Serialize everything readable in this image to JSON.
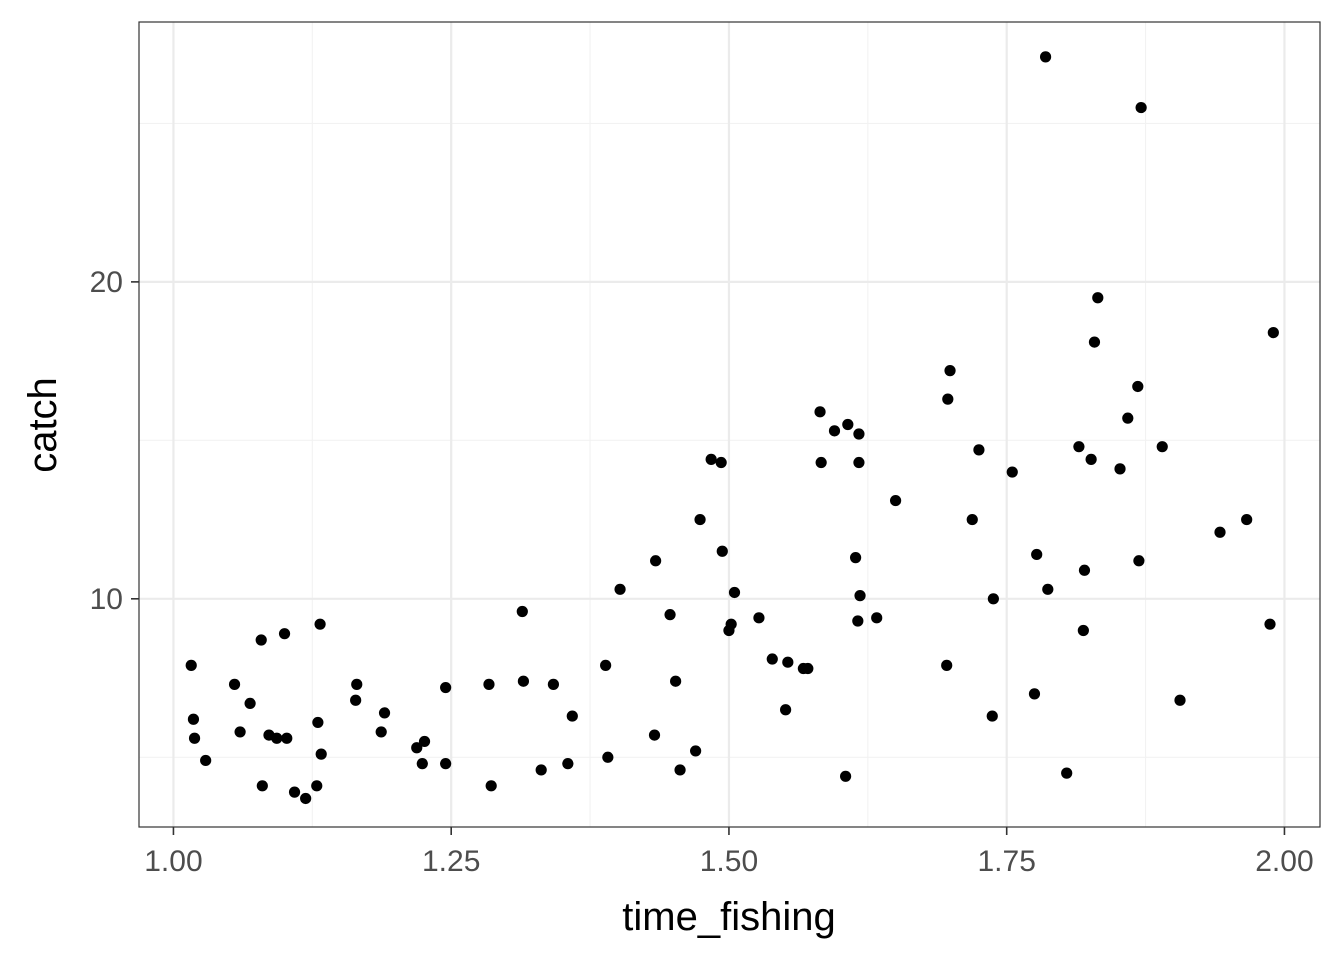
{
  "chart_data": {
    "type": "scatter",
    "title": "",
    "xlabel": "time_fishing",
    "ylabel": "catch",
    "xlim": [
      0.969,
      2.032
    ],
    "ylim": [
      2.8,
      28.2
    ],
    "x_ticks": [
      1.0,
      1.25,
      1.5,
      1.75,
      2.0
    ],
    "x_tick_labels": [
      "1.00",
      "1.25",
      "1.50",
      "1.75",
      "2.00"
    ],
    "x_minor_ticks": [
      1.125,
      1.375,
      1.625,
      1.875
    ],
    "y_ticks": [
      10,
      20
    ],
    "y_tick_labels": [
      "10",
      "20"
    ],
    "y_minor_ticks": [
      5,
      15,
      25
    ],
    "grid": true,
    "theme": "bw",
    "colors": {
      "point": "#000000",
      "grid_major": "#ebebeb",
      "grid_minor": "#f2f2f2",
      "panel_border": "#333333"
    },
    "points": [
      {
        "x": 1.016,
        "y": 7.9
      },
      {
        "x": 1.018,
        "y": 6.2
      },
      {
        "x": 1.019,
        "y": 5.6
      },
      {
        "x": 1.029,
        "y": 4.9
      },
      {
        "x": 1.055,
        "y": 7.3
      },
      {
        "x": 1.06,
        "y": 5.8
      },
      {
        "x": 1.069,
        "y": 6.7
      },
      {
        "x": 1.079,
        "y": 8.7
      },
      {
        "x": 1.08,
        "y": 4.1
      },
      {
        "x": 1.086,
        "y": 5.7
      },
      {
        "x": 1.093,
        "y": 5.6
      },
      {
        "x": 1.1,
        "y": 8.9
      },
      {
        "x": 1.102,
        "y": 5.6
      },
      {
        "x": 1.109,
        "y": 3.9
      },
      {
        "x": 1.119,
        "y": 3.7
      },
      {
        "x": 1.129,
        "y": 4.1
      },
      {
        "x": 1.13,
        "y": 6.1
      },
      {
        "x": 1.132,
        "y": 9.2
      },
      {
        "x": 1.133,
        "y": 5.1
      },
      {
        "x": 1.164,
        "y": 6.8
      },
      {
        "x": 1.165,
        "y": 7.3
      },
      {
        "x": 1.187,
        "y": 5.8
      },
      {
        "x": 1.19,
        "y": 6.4
      },
      {
        "x": 1.219,
        "y": 5.3
      },
      {
        "x": 1.224,
        "y": 4.8
      },
      {
        "x": 1.226,
        "y": 5.5
      },
      {
        "x": 1.245,
        "y": 7.2
      },
      {
        "x": 1.245,
        "y": 4.8
      },
      {
        "x": 1.284,
        "y": 7.3
      },
      {
        "x": 1.286,
        "y": 4.1
      },
      {
        "x": 1.314,
        "y": 9.6
      },
      {
        "x": 1.315,
        "y": 7.4
      },
      {
        "x": 1.331,
        "y": 4.6
      },
      {
        "x": 1.342,
        "y": 7.3
      },
      {
        "x": 1.355,
        "y": 4.8
      },
      {
        "x": 1.359,
        "y": 6.3
      },
      {
        "x": 1.389,
        "y": 7.9
      },
      {
        "x": 1.391,
        "y": 5.0
      },
      {
        "x": 1.402,
        "y": 10.3
      },
      {
        "x": 1.433,
        "y": 5.7
      },
      {
        "x": 1.434,
        "y": 11.2
      },
      {
        "x": 1.447,
        "y": 9.5
      },
      {
        "x": 1.452,
        "y": 7.4
      },
      {
        "x": 1.456,
        "y": 4.6
      },
      {
        "x": 1.47,
        "y": 5.2
      },
      {
        "x": 1.474,
        "y": 12.5
      },
      {
        "x": 1.484,
        "y": 14.4
      },
      {
        "x": 1.493,
        "y": 14.3
      },
      {
        "x": 1.494,
        "y": 11.5
      },
      {
        "x": 1.5,
        "y": 9.0
      },
      {
        "x": 1.502,
        "y": 9.2
      },
      {
        "x": 1.505,
        "y": 10.2
      },
      {
        "x": 1.527,
        "y": 9.4
      },
      {
        "x": 1.539,
        "y": 8.1
      },
      {
        "x": 1.551,
        "y": 6.5
      },
      {
        "x": 1.553,
        "y": 8.0
      },
      {
        "x": 1.567,
        "y": 7.8
      },
      {
        "x": 1.571,
        "y": 7.8
      },
      {
        "x": 1.582,
        "y": 15.9
      },
      {
        "x": 1.583,
        "y": 14.3
      },
      {
        "x": 1.595,
        "y": 15.3
      },
      {
        "x": 1.605,
        "y": 4.4
      },
      {
        "x": 1.607,
        "y": 15.5
      },
      {
        "x": 1.614,
        "y": 11.3
      },
      {
        "x": 1.616,
        "y": 9.3
      },
      {
        "x": 1.617,
        "y": 15.2
      },
      {
        "x": 1.617,
        "y": 14.3
      },
      {
        "x": 1.618,
        "y": 10.1
      },
      {
        "x": 1.633,
        "y": 9.4
      },
      {
        "x": 1.65,
        "y": 13.1
      },
      {
        "x": 1.696,
        "y": 7.9
      },
      {
        "x": 1.697,
        "y": 16.3
      },
      {
        "x": 1.699,
        "y": 17.2
      },
      {
        "x": 1.719,
        "y": 12.5
      },
      {
        "x": 1.725,
        "y": 14.7
      },
      {
        "x": 1.737,
        "y": 6.3
      },
      {
        "x": 1.738,
        "y": 10.0
      },
      {
        "x": 1.755,
        "y": 14.0
      },
      {
        "x": 1.775,
        "y": 7.0
      },
      {
        "x": 1.777,
        "y": 11.4
      },
      {
        "x": 1.785,
        "y": 27.1
      },
      {
        "x": 1.787,
        "y": 10.3
      },
      {
        "x": 1.804,
        "y": 4.5
      },
      {
        "x": 1.815,
        "y": 14.8
      },
      {
        "x": 1.819,
        "y": 9.0
      },
      {
        "x": 1.82,
        "y": 10.9
      },
      {
        "x": 1.826,
        "y": 14.4
      },
      {
        "x": 1.829,
        "y": 18.1
      },
      {
        "x": 1.832,
        "y": 19.5
      },
      {
        "x": 1.852,
        "y": 14.1
      },
      {
        "x": 1.859,
        "y": 15.7
      },
      {
        "x": 1.868,
        "y": 16.7
      },
      {
        "x": 1.869,
        "y": 11.2
      },
      {
        "x": 1.871,
        "y": 25.5
      },
      {
        "x": 1.89,
        "y": 14.8
      },
      {
        "x": 1.906,
        "y": 6.8
      },
      {
        "x": 1.942,
        "y": 12.1
      },
      {
        "x": 1.966,
        "y": 12.5
      },
      {
        "x": 1.987,
        "y": 9.2
      },
      {
        "x": 1.99,
        "y": 18.4
      }
    ]
  }
}
